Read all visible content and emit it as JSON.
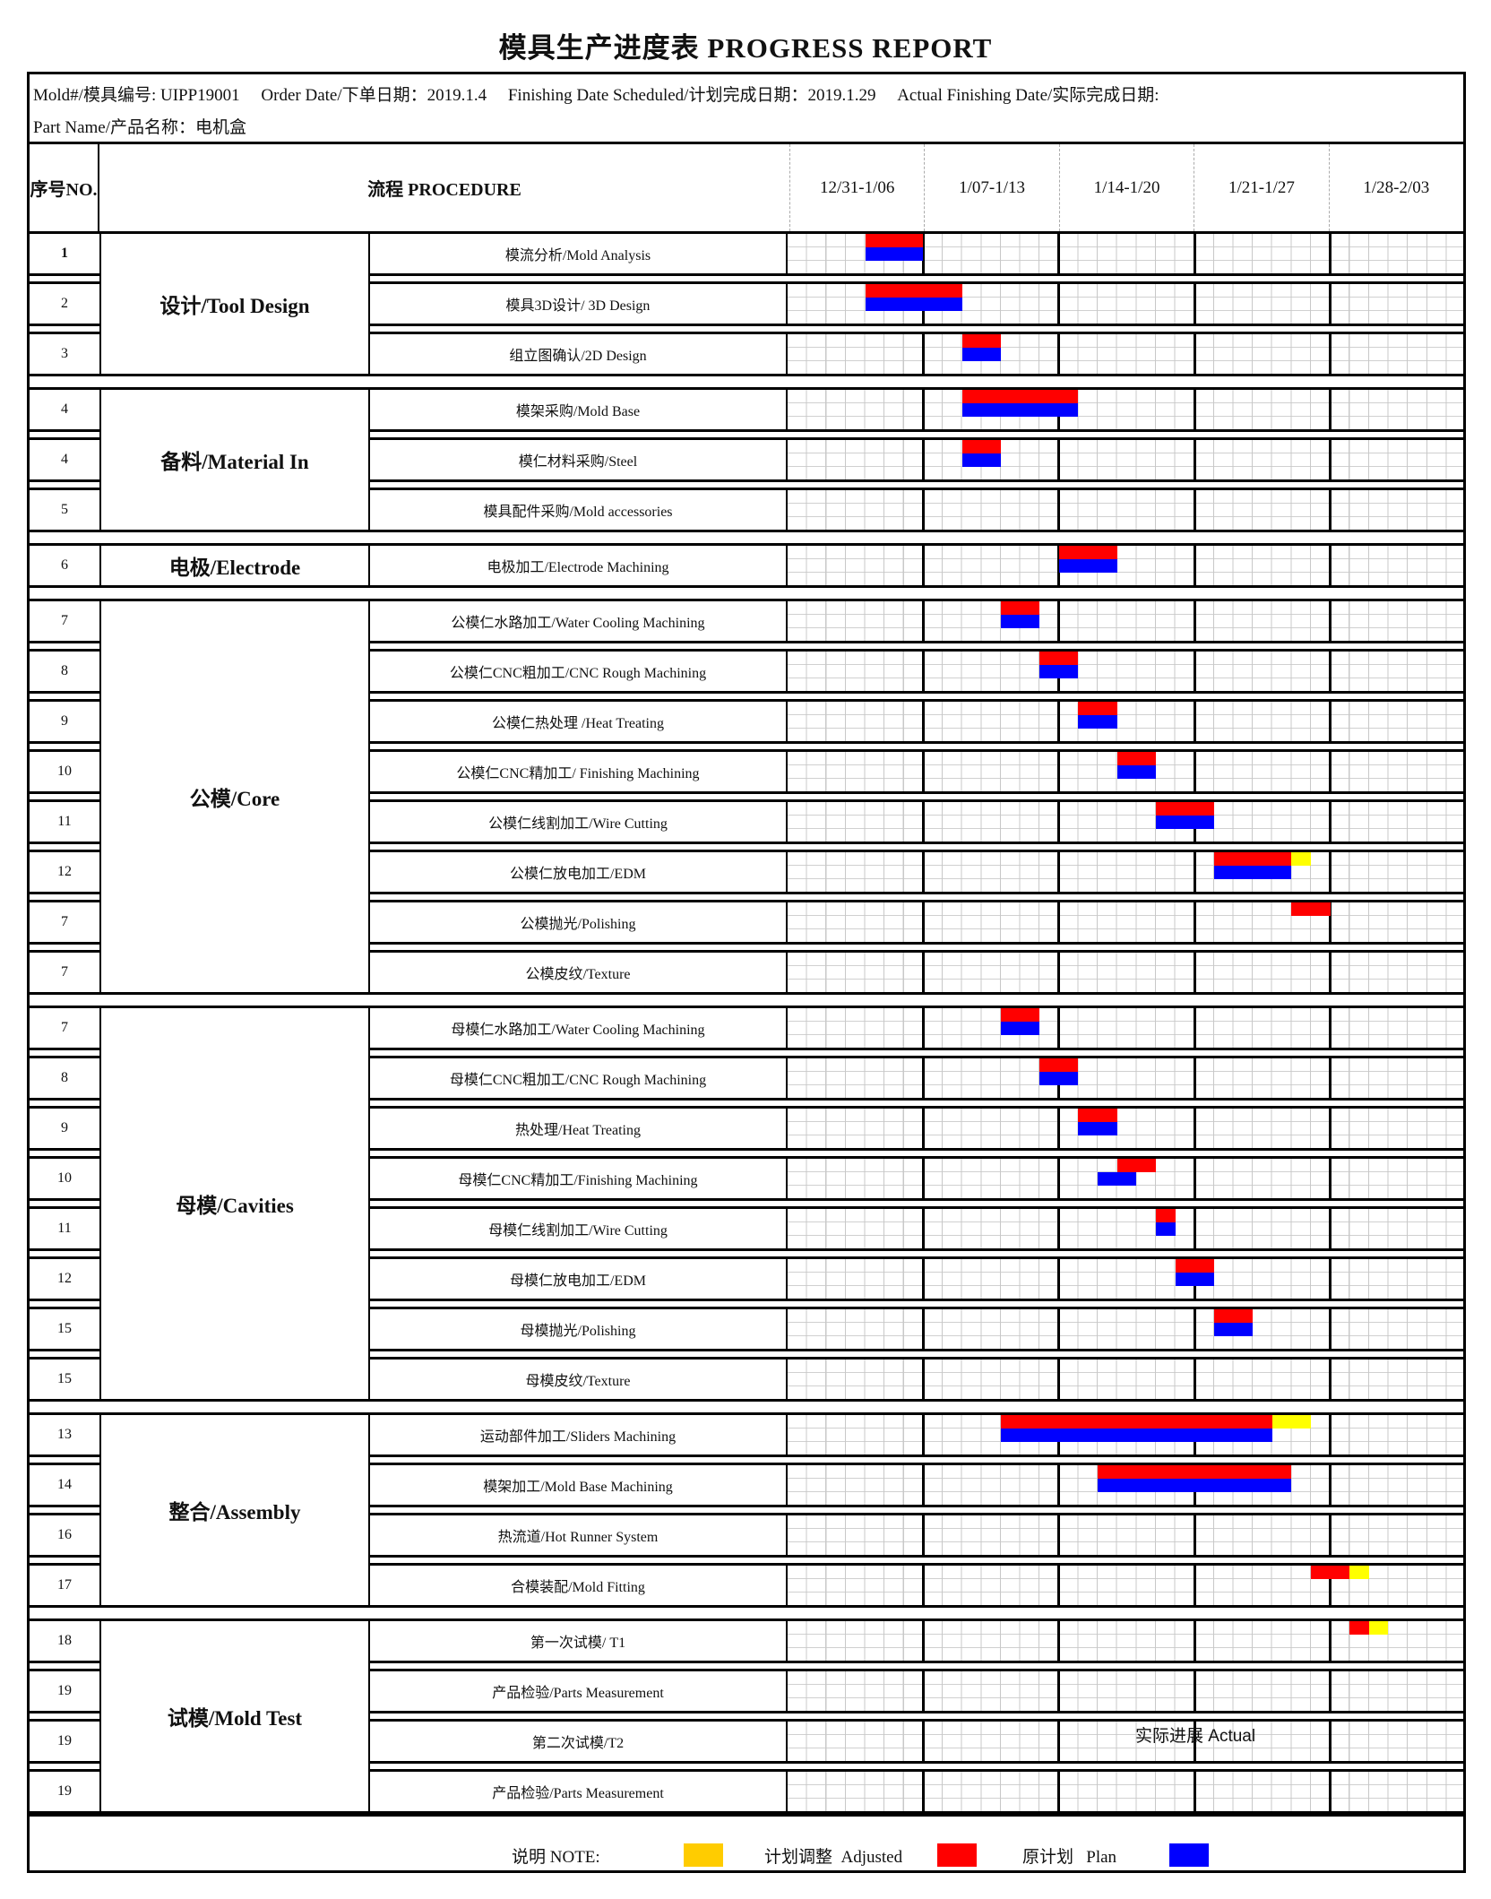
{
  "title": "模具生产进度表  PROGRESS REPORT",
  "info": {
    "line1": "Mold#/模具编号: UIPP19001     Order Date/下单日期：2019.1.4     Finishing Date Scheduled/计划完成日期：2019.1.29     Actual Finishing Date/实际完成日期:",
    "line2": "Part Name/产品名称：电机盒"
  },
  "header": {
    "no": "序号NO.",
    "procedure": "流程 PROCEDURE",
    "weeks": [
      "12/31-1/06",
      "1/07-1/13",
      "1/14-1/20",
      "1/21-1/27",
      "1/28-2/03"
    ]
  },
  "timeline_start": "2018-12-31",
  "colors": {
    "red": "#ff0000",
    "blue": "#0000ff",
    "yellow": "#ffff00",
    "legend_yellow": "#ffcc00"
  },
  "sections": [
    {
      "group": "设计/Tool Design",
      "rows": [
        {
          "no": "1",
          "label": "模流分析/Mold Analysis",
          "bars": [
            {
              "color": "red",
              "from": "2019-01-04",
              "to": "2019-01-06"
            },
            {
              "color": "blue",
              "from": "2019-01-04",
              "to": "2019-01-06"
            }
          ]
        },
        {
          "no": "2",
          "label": "模具3D设计/ 3D Design",
          "bars": [
            {
              "color": "red",
              "from": "2019-01-04",
              "to": "2019-01-08"
            },
            {
              "color": "blue",
              "from": "2019-01-04",
              "to": "2019-01-08"
            }
          ]
        },
        {
          "no": "3",
          "label": "组立图确认/2D Design",
          "bars": [
            {
              "color": "red",
              "from": "2019-01-09",
              "to": "2019-01-10"
            },
            {
              "color": "blue",
              "from": "2019-01-09",
              "to": "2019-01-10"
            }
          ]
        }
      ]
    },
    {
      "group": "备料/Material In",
      "rows": [
        {
          "no": "4",
          "label": "模架采购/Mold Base",
          "bars": [
            {
              "color": "red",
              "from": "2019-01-09",
              "to": "2019-01-14"
            },
            {
              "color": "blue",
              "from": "2019-01-09",
              "to": "2019-01-14"
            }
          ]
        },
        {
          "no": "4",
          "label": "模仁材料采购/Steel",
          "bars": [
            {
              "color": "red",
              "from": "2019-01-09",
              "to": "2019-01-10"
            },
            {
              "color": "blue",
              "from": "2019-01-09",
              "to": "2019-01-10"
            }
          ]
        },
        {
          "no": "5",
          "label": "模具配件采购/Mold accessories",
          "bars": []
        }
      ]
    },
    {
      "group": "电极/Electrode",
      "rows": [
        {
          "no": "6",
          "label": "电极加工/Electrode Machining",
          "bars": [
            {
              "color": "red",
              "from": "2019-01-14",
              "to": "2019-01-16"
            },
            {
              "color": "blue",
              "from": "2019-01-14",
              "to": "2019-01-16"
            }
          ]
        }
      ]
    },
    {
      "group": "公模/Core",
      "rows": [
        {
          "no": "7",
          "label": "公模仁水路加工/Water Cooling Machining",
          "bars": [
            {
              "color": "red",
              "from": "2019-01-11",
              "to": "2019-01-12"
            },
            {
              "color": "blue",
              "from": "2019-01-11",
              "to": "2019-01-12"
            }
          ]
        },
        {
          "no": "8",
          "label": "公模仁CNC粗加工/CNC Rough Machining",
          "bars": [
            {
              "color": "red",
              "from": "2019-01-13",
              "to": "2019-01-14"
            },
            {
              "color": "blue",
              "from": "2019-01-13",
              "to": "2019-01-14"
            }
          ]
        },
        {
          "no": "9",
          "label": "公模仁热处理 /Heat Treating",
          "bars": [
            {
              "color": "red",
              "from": "2019-01-15",
              "to": "2019-01-16"
            },
            {
              "color": "blue",
              "from": "2019-01-15",
              "to": "2019-01-16"
            }
          ]
        },
        {
          "no": "10",
          "label": "公模仁CNC精加工/ Finishing Machining",
          "bars": [
            {
              "color": "red",
              "from": "2019-01-17",
              "to": "2019-01-18"
            },
            {
              "color": "blue",
              "from": "2019-01-17",
              "to": "2019-01-18"
            }
          ]
        },
        {
          "no": "11",
          "label": "公模仁线割加工/Wire Cutting",
          "bars": [
            {
              "color": "red",
              "from": "2019-01-19",
              "to": "2019-01-21"
            },
            {
              "color": "blue",
              "from": "2019-01-19",
              "to": "2019-01-21"
            }
          ]
        },
        {
          "no": "12",
          "label": "公模仁放电加工/EDM",
          "bars": [
            {
              "color": "red",
              "from": "2019-01-22",
              "to": "2019-01-25"
            },
            {
              "color": "yellow",
              "from": "2019-01-26",
              "to": "2019-01-26"
            },
            {
              "color": "blue",
              "from": "2019-01-22",
              "to": "2019-01-25"
            }
          ]
        },
        {
          "no": "7",
          "label": "公模抛光/Polishing",
          "bars": [
            {
              "color": "red",
              "from": "2019-01-26",
              "to": "2019-01-27"
            }
          ]
        },
        {
          "no": "7",
          "label": "公模皮纹/Texture",
          "bars": []
        }
      ]
    },
    {
      "group": "母模/Cavities",
      "rows": [
        {
          "no": "7",
          "label": "母模仁水路加工/Water Cooling Machining",
          "bars": [
            {
              "color": "red",
              "from": "2019-01-11",
              "to": "2019-01-12"
            },
            {
              "color": "blue",
              "from": "2019-01-11",
              "to": "2019-01-12"
            }
          ]
        },
        {
          "no": "8",
          "label": "母模仁CNC粗加工/CNC Rough Machining",
          "bars": [
            {
              "color": "red",
              "from": "2019-01-13",
              "to": "2019-01-14"
            },
            {
              "color": "blue",
              "from": "2019-01-13",
              "to": "2019-01-14"
            }
          ]
        },
        {
          "no": "9",
          "label": "热处理/Heat Treating",
          "bars": [
            {
              "color": "red",
              "from": "2019-01-15",
              "to": "2019-01-16"
            },
            {
              "color": "blue",
              "from": "2019-01-15",
              "to": "2019-01-16"
            }
          ]
        },
        {
          "no": "10",
          "label": "母模仁CNC精加工/Finishing Machining",
          "bars": [
            {
              "color": "red",
              "from": "2019-01-17",
              "to": "2019-01-18"
            },
            {
              "color": "blue",
              "from": "2019-01-16",
              "to": "2019-01-17"
            }
          ]
        },
        {
          "no": "11",
          "label": "母模仁线割加工/Wire Cutting",
          "bars": [
            {
              "color": "red",
              "from": "2019-01-19",
              "to": "2019-01-19"
            },
            {
              "color": "blue",
              "from": "2019-01-19",
              "to": "2019-01-19"
            }
          ]
        },
        {
          "no": "12",
          "label": "母模仁放电加工/EDM",
          "bars": [
            {
              "color": "red",
              "from": "2019-01-20",
              "to": "2019-01-21"
            },
            {
              "color": "blue",
              "from": "2019-01-20",
              "to": "2019-01-21"
            }
          ]
        },
        {
          "no": "15",
          "label": "母模抛光/Polishing",
          "bars": [
            {
              "color": "red",
              "from": "2019-01-22",
              "to": "2019-01-23"
            },
            {
              "color": "blue",
              "from": "2019-01-22",
              "to": "2019-01-23"
            }
          ]
        },
        {
          "no": "15",
          "label": "母模皮纹/Texture",
          "bars": []
        }
      ]
    },
    {
      "group": "整合/Assembly",
      "rows": [
        {
          "no": "13",
          "label": "运动部件加工/Sliders Machining",
          "bars": [
            {
              "color": "red",
              "from": "2019-01-11",
              "to": "2019-01-24"
            },
            {
              "color": "yellow",
              "from": "2019-01-25",
              "to": "2019-01-26"
            },
            {
              "color": "blue",
              "from": "2019-01-11",
              "to": "2019-01-24"
            }
          ]
        },
        {
          "no": "14",
          "label": "模架加工/Mold Base Machining",
          "bars": [
            {
              "color": "red",
              "from": "2019-01-16",
              "to": "2019-01-25"
            },
            {
              "color": "blue",
              "from": "2019-01-16",
              "to": "2019-01-25"
            }
          ]
        },
        {
          "no": "16",
          "label": "热流道/Hot Runner System",
          "bars": []
        },
        {
          "no": "17",
          "label": "合模装配/Mold Fitting",
          "bars": [
            {
              "color": "red",
              "from": "2019-01-27",
              "to": "2019-01-28"
            },
            {
              "color": "yellow",
              "from": "2019-01-29",
              "to": "2019-01-29"
            }
          ]
        }
      ]
    },
    {
      "group": "试模/Mold Test",
      "rows": [
        {
          "no": "18",
          "label": "第一次试模/ T1",
          "bars": [
            {
              "color": "red",
              "from": "2019-01-29",
              "to": "2019-01-29"
            },
            {
              "color": "yellow",
              "from": "2019-01-30",
              "to": "2019-01-30"
            }
          ]
        },
        {
          "no": "19",
          "label": "产品检验/Parts Measurement",
          "bars": []
        },
        {
          "no": "19",
          "label": "第二次试模/T2",
          "bars": []
        },
        {
          "no": "19",
          "label": "产品检验/Parts Measurement",
          "bars": []
        }
      ]
    }
  ],
  "actual_note": "实际进展 Actual",
  "legend": {
    "note": "说明 NOTE:",
    "adjusted": "计划调整  Adjusted",
    "plan": "原计划   Plan"
  }
}
